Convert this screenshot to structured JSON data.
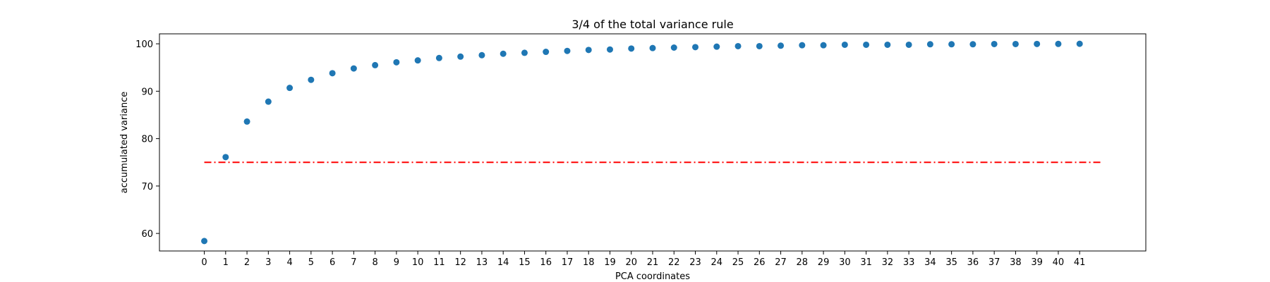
{
  "chart_data": {
    "type": "scatter",
    "title": "3/4 of the total variance rule",
    "xlabel": "PCA coordinates",
    "ylabel": "accumulated variance",
    "x": [
      0,
      1,
      2,
      3,
      4,
      5,
      6,
      7,
      8,
      9,
      10,
      11,
      12,
      13,
      14,
      15,
      16,
      17,
      18,
      19,
      20,
      21,
      22,
      23,
      24,
      25,
      26,
      27,
      28,
      29,
      30,
      31,
      32,
      33,
      34,
      35,
      36,
      37,
      38,
      39,
      40,
      41
    ],
    "x_tick_labels": [
      "0",
      "1",
      "2",
      "3",
      "4",
      "5",
      "6",
      "7",
      "8",
      "9",
      "10",
      "11",
      "12",
      "13",
      "14",
      "15",
      "16",
      "17",
      "18",
      "19",
      "20",
      "21",
      "22",
      "23",
      "24",
      "25",
      "26",
      "27",
      "28",
      "29",
      "30",
      "31",
      "32",
      "33",
      "34",
      "35",
      "36",
      "37",
      "38",
      "39",
      "40",
      "41"
    ],
    "y": [
      58.4,
      76.1,
      83.6,
      87.8,
      90.7,
      92.4,
      93.8,
      94.8,
      95.5,
      96.1,
      96.5,
      97.0,
      97.3,
      97.6,
      97.9,
      98.1,
      98.3,
      98.5,
      98.7,
      98.8,
      99.0,
      99.1,
      99.2,
      99.3,
      99.4,
      99.5,
      99.5,
      99.6,
      99.7,
      99.7,
      99.8,
      99.8,
      99.8,
      99.8,
      99.9,
      99.9,
      99.9,
      99.95,
      99.95,
      99.97,
      99.98,
      100.0
    ],
    "y_ticks": [
      60,
      70,
      80,
      90,
      100
    ],
    "y_tick_labels": [
      "60",
      "70",
      "80",
      "90",
      100
    ],
    "xlim": [
      -2.1,
      44.1
    ],
    "ylim": [
      56.3,
      102.1
    ],
    "threshold": {
      "y": 75,
      "x_start": 0,
      "x_end": 42,
      "color": "#ff0000",
      "style": "dash-dot"
    },
    "point_color": "#1f77b4",
    "grid": false
  }
}
